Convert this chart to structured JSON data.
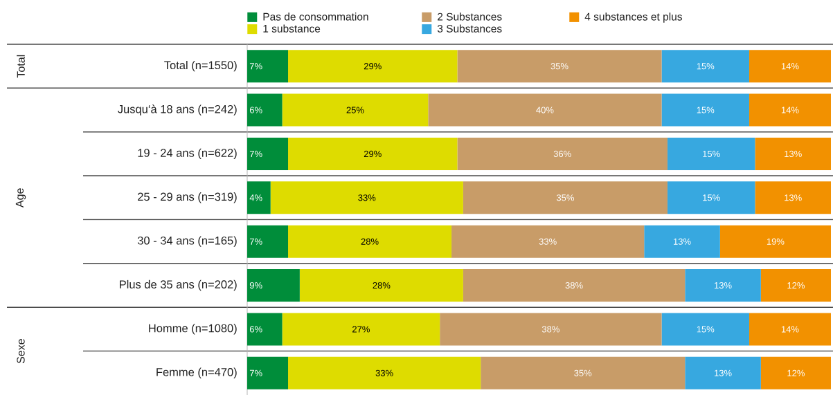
{
  "chart_data": {
    "type": "bar",
    "orientation": "horizontal",
    "stacked": true,
    "categories": [
      "Total (n=1550)",
      "Jusqu‘à 18 ans (n=242)",
      "19 - 24 ans (n=622)",
      "25 - 29 ans (n=319)",
      "30 - 34 ans (n=165)",
      "Plus de 35 ans (n=202)",
      "Homme (n=1080)",
      "Femme (n=470)"
    ],
    "series": [
      {
        "name": "Pas de consommation",
        "color": "#008d3a",
        "values": [
          7,
          6,
          7,
          4,
          7,
          9,
          6,
          7
        ],
        "value_labels": [
          "7%",
          "6%",
          "7%",
          "4%",
          "7%",
          "9%",
          "6%",
          "7%"
        ]
      },
      {
        "name": "1 substance",
        "color": "#dedc00",
        "values": [
          29,
          25,
          29,
          33,
          28,
          28,
          27,
          33
        ],
        "value_labels": [
          "29%",
          "25%",
          "29%",
          "33%",
          "28%",
          "28%",
          "27%",
          "33%"
        ]
      },
      {
        "name": "2 Substances",
        "color": "#c89c68",
        "values": [
          35,
          40,
          36,
          35,
          33,
          38,
          38,
          35
        ],
        "value_labels": [
          "35%",
          "40%",
          "36%",
          "35%",
          "33%",
          "38%",
          "38%",
          "35%"
        ]
      },
      {
        "name": "3 Substances",
        "color": "#37a8e0",
        "values": [
          15,
          15,
          15,
          15,
          13,
          13,
          15,
          13
        ],
        "value_labels": [
          "15%",
          "15%",
          "15%",
          "15%",
          "13%",
          "13%",
          "15%",
          "13%"
        ]
      },
      {
        "name": "4 substances et plus",
        "color": "#f29100",
        "values": [
          14,
          14,
          13,
          13,
          19,
          12,
          14,
          12
        ],
        "value_labels": [
          "14%",
          "14%",
          "13%",
          "13%",
          "19%",
          "12%",
          "14%",
          "12%"
        ]
      }
    ],
    "tick_labels": "y",
    "legend": "top",
    "annotations": [
      "Total",
      "Age",
      "Sexe"
    ]
  }
}
